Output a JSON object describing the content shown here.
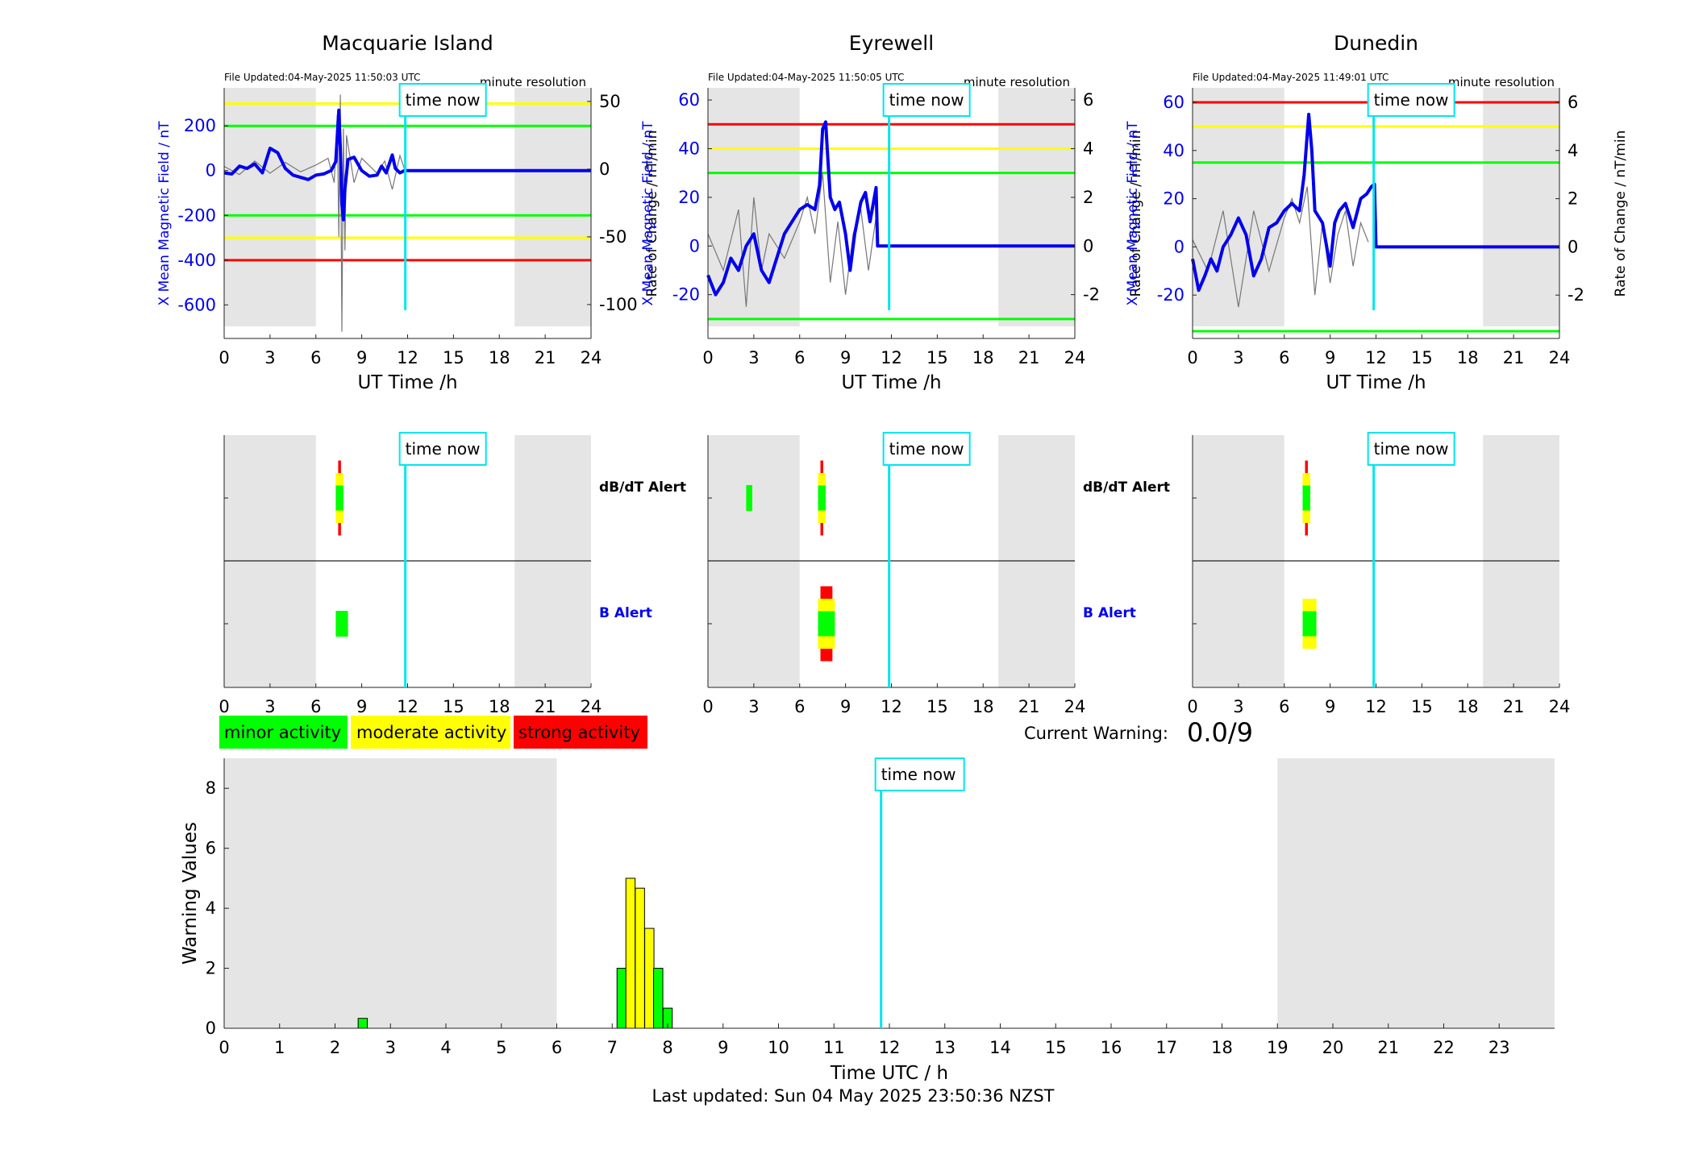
{
  "stations": [
    {
      "name": "Macquarie Island",
      "file_updated": "File Updated:04-May-2025 11:50:03 UTC",
      "resolution": "minute resolution",
      "ylabel": "X Mean Magnetic Field / nT",
      "y2label": "Rate of Change / nT/min",
      "yticks": [
        200,
        0,
        -200,
        -400,
        -600
      ],
      "ylim": [
        -750,
        370
      ],
      "y2ticks": [
        50,
        0,
        -50,
        -100
      ],
      "y2lim": [
        -125,
        60
      ],
      "levels": [
        {
          "value": 300,
          "color": "#ffff00"
        },
        {
          "value": 200,
          "color": "#00ff00"
        },
        {
          "value": -200,
          "color": "#00ff00"
        },
        {
          "value": -300,
          "color": "#ffff00"
        },
        {
          "value": -400,
          "color": "#ff0000"
        }
      ],
      "field_x": [
        0,
        0.5,
        1,
        1.5,
        2,
        2.5,
        3,
        3.5,
        4,
        4.5,
        5,
        5.5,
        6,
        6.5,
        7,
        7.3,
        7.5,
        7.6,
        7.7,
        7.8,
        7.9,
        8.1,
        8.5,
        9,
        9.5,
        10,
        10.3,
        10.6,
        11,
        11.2,
        11.5,
        11.8,
        12,
        24
      ],
      "field_y": [
        -10,
        -15,
        20,
        10,
        30,
        -10,
        100,
        80,
        10,
        -20,
        -30,
        -40,
        -20,
        -15,
        0,
        40,
        270,
        100,
        -150,
        -220,
        -80,
        50,
        60,
        0,
        -25,
        -20,
        20,
        -10,
        70,
        10,
        -10,
        0,
        0,
        0
      ],
      "rate_x": [
        0,
        1,
        2,
        3,
        4,
        5,
        6,
        6.8,
        7.2,
        7.4,
        7.5,
        7.6,
        7.7,
        7.8,
        7.9,
        8,
        8.5,
        9,
        10,
        10.5,
        11,
        11.5,
        11.8
      ],
      "rate_y": [
        2,
        -4,
        6,
        -3,
        5,
        -2,
        3,
        8,
        -10,
        40,
        -50,
        55,
        -120,
        30,
        -60,
        25,
        -10,
        8,
        -3,
        6,
        -15,
        10,
        0
      ]
    },
    {
      "name": "Eyrewell",
      "file_updated": "File Updated:04-May-2025 11:50:05 UTC",
      "resolution": "minute resolution",
      "ylabel": "X Mean Magnetic Field / nT",
      "y2label": "Rate of Change / nT/min",
      "yticks": [
        60,
        40,
        20,
        0,
        -20
      ],
      "ylim": [
        -38,
        65
      ],
      "y2ticks": [
        6,
        4,
        2,
        0,
        -2
      ],
      "y2lim": [
        -3.8,
        6.5
      ],
      "levels": [
        {
          "value": 50,
          "color": "#ff0000"
        },
        {
          "value": 40,
          "color": "#ffff00"
        },
        {
          "value": 30,
          "color": "#00ff00"
        },
        {
          "value": -30,
          "color": "#00ff00"
        }
      ],
      "field_x": [
        0,
        0.5,
        1,
        1.5,
        2,
        2.5,
        3,
        3.5,
        4,
        4.5,
        5,
        5.5,
        6,
        6.5,
        7,
        7.3,
        7.5,
        7.7,
        7.8,
        8,
        8.3,
        8.6,
        9,
        9.3,
        9.6,
        10,
        10.3,
        10.6,
        11,
        11.1,
        11.2,
        24
      ],
      "field_y": [
        -12,
        -20,
        -15,
        -5,
        -10,
        0,
        5,
        -10,
        -15,
        -5,
        5,
        10,
        15,
        17,
        15,
        25,
        48,
        51,
        40,
        20,
        15,
        18,
        5,
        -10,
        5,
        18,
        22,
        10,
        24,
        0,
        0,
        0
      ],
      "rate_x": [
        0,
        1,
        2,
        2.5,
        3,
        3.5,
        4,
        5,
        6,
        6.5,
        7,
        7.5,
        8,
        8.5,
        9,
        9.5,
        10,
        10.5,
        11
      ],
      "rate_y": [
        0.5,
        -1,
        1.5,
        -2.5,
        2,
        -1,
        0.5,
        -0.5,
        1,
        2,
        0.5,
        3,
        -1.5,
        1,
        -2,
        0.5,
        1.5,
        -1,
        1.2
      ]
    },
    {
      "name": "Dunedin",
      "file_updated": "File Updated:04-May-2025 11:49:01 UTC",
      "resolution": "minute resolution",
      "ylabel": "X Mean Magnetic Field / nT",
      "y2label": "Rate of Change / nT/min",
      "yticks": [
        60,
        40,
        20,
        0,
        -20
      ],
      "ylim": [
        -38,
        66
      ],
      "y2ticks": [
        6,
        4,
        2,
        0,
        -2
      ],
      "y2lim": [
        -3.8,
        6.6
      ],
      "levels": [
        {
          "value": 60,
          "color": "#ff0000"
        },
        {
          "value": 50,
          "color": "#ffff00"
        },
        {
          "value": 35,
          "color": "#00ff00"
        },
        {
          "value": -35,
          "color": "#00ff00"
        }
      ],
      "field_x": [
        0,
        0.4,
        0.8,
        1.2,
        1.6,
        2,
        2.5,
        3,
        3.5,
        4,
        4.5,
        5,
        5.5,
        6,
        6.5,
        7,
        7.3,
        7.6,
        7.8,
        8,
        8.5,
        9,
        9.3,
        9.6,
        10,
        10.5,
        11,
        11.4,
        11.7,
        11.9,
        12,
        24
      ],
      "field_y": [
        -5,
        -18,
        -12,
        -5,
        -10,
        0,
        5,
        12,
        5,
        -12,
        -5,
        8,
        10,
        15,
        18,
        15,
        30,
        55,
        40,
        15,
        10,
        -8,
        10,
        15,
        18,
        8,
        20,
        22,
        25,
        26,
        0,
        0
      ],
      "rate_x": [
        0,
        1,
        2,
        3,
        4,
        5,
        6,
        6.5,
        7,
        7.5,
        8,
        8.5,
        9,
        9.5,
        10,
        10.5,
        11,
        11.5
      ],
      "rate_y": [
        0.3,
        -1,
        1.5,
        -2.5,
        1.5,
        -1,
        1.2,
        2,
        1,
        2.5,
        -2,
        1,
        -1.5,
        0.5,
        1.5,
        -0.8,
        1,
        0.2
      ]
    }
  ],
  "x_label": "UT Time /h",
  "x_ticks": [
    0,
    3,
    6,
    9,
    12,
    15,
    18,
    21,
    24
  ],
  "time_now_label": "time now",
  "time_now": 11.85,
  "night_shading": [
    [
      0,
      6
    ],
    [
      19,
      24
    ]
  ],
  "alert_panels": [
    {
      "dbdt_label": "dB/dT Alert",
      "b_label": "B Alert",
      "dbdt_bars": [
        {
          "x": 7.3,
          "width": 0.5,
          "levels": [
            "red",
            "yellow",
            "green",
            "yellow",
            "red"
          ]
        }
      ],
      "b_bars": [
        {
          "x": 7.3,
          "width": 0.8,
          "levels": [
            "green"
          ]
        }
      ]
    },
    {
      "dbdt_label": "dB/dT Alert",
      "b_label": "B Alert",
      "dbdt_bars": [
        {
          "x": 2.5,
          "width": 0.4,
          "levels": [
            "green"
          ]
        },
        {
          "x": 7.2,
          "width": 0.5,
          "levels": [
            "red",
            "yellow",
            "green",
            "yellow",
            "red"
          ]
        }
      ],
      "b_bars": [
        {
          "x": 7.2,
          "width": 1.1,
          "levels": [
            "red",
            "yellow",
            "green",
            "yellow",
            "red"
          ]
        }
      ]
    },
    {
      "dbdt_label": "",
      "b_label": "",
      "dbdt_bars": [
        {
          "x": 7.2,
          "width": 0.5,
          "levels": [
            "red",
            "yellow",
            "green",
            "yellow",
            "red"
          ]
        }
      ],
      "b_bars": [
        {
          "x": 7.2,
          "width": 0.9,
          "levels": [
            "yellow",
            "green",
            "yellow"
          ]
        }
      ]
    }
  ],
  "legend": [
    {
      "label": "minor activity",
      "color": "#00ff00"
    },
    {
      "label": "moderate activity",
      "color": "#ffff00"
    },
    {
      "label": "strong activity",
      "color": "#ff0000"
    }
  ],
  "current_warning_label": "Current Warning:",
  "current_warning_value": "0.0/9",
  "chart_data": {
    "type": "bar",
    "xlabel": "Time UTC / h",
    "ylabel": "Warning Values",
    "ylim": [
      0,
      9
    ],
    "xlim": [
      0,
      24
    ],
    "xticks": [
      0,
      1,
      2,
      3,
      4,
      5,
      6,
      7,
      8,
      9,
      10,
      11,
      12,
      13,
      14,
      15,
      16,
      17,
      18,
      19,
      20,
      21,
      22,
      23
    ],
    "yticks": [
      0,
      2,
      4,
      6,
      8
    ],
    "time_now": 11.85,
    "bars": [
      {
        "x": 2.5,
        "value": 0.33,
        "color": "#00ff00"
      },
      {
        "x": 7.17,
        "value": 2.0,
        "color": "#00ff00"
      },
      {
        "x": 7.33,
        "value": 5.0,
        "color": "#ffff00"
      },
      {
        "x": 7.5,
        "value": 4.67,
        "color": "#ffff00"
      },
      {
        "x": 7.67,
        "value": 3.33,
        "color": "#ffff00"
      },
      {
        "x": 7.83,
        "value": 2.0,
        "color": "#00ff00"
      },
      {
        "x": 8.0,
        "value": 0.67,
        "color": "#00ff00"
      }
    ]
  },
  "last_updated": "Last updated: Sun 04 May 2025 23:50:36 NZST"
}
